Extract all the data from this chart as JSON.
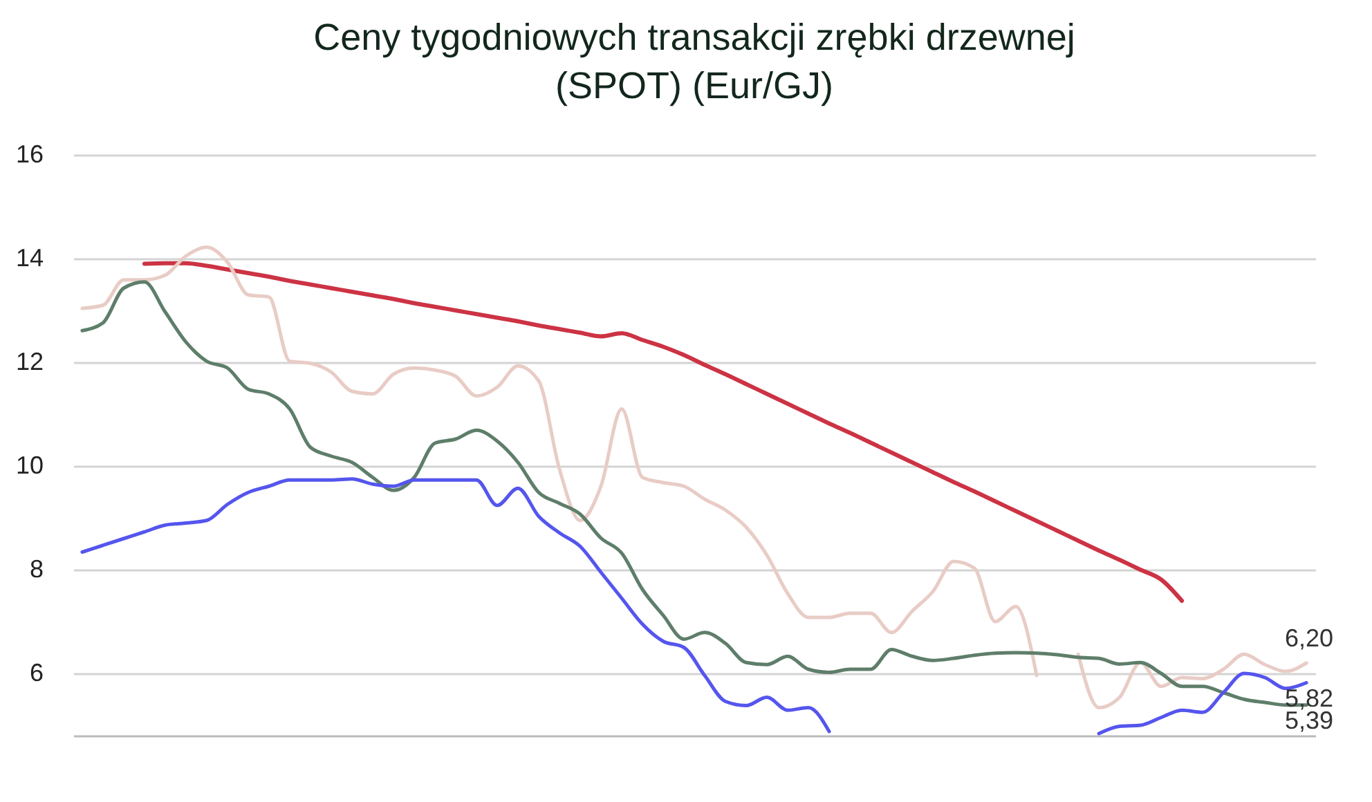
{
  "chart_data": {
    "type": "line",
    "title": "Ceny tygodniowych transakcji zrębki drzewnej\n(SPOT) (Eur/GJ)",
    "categories": [
      null,
      null,
      null,
      null,
      null,
      null,
      null,
      null,
      null,
      null,
      null,
      null,
      null,
      null,
      null,
      null,
      null,
      null,
      null,
      null,
      null,
      null,
      null,
      null,
      null,
      null,
      null,
      null,
      null,
      null,
      null,
      null,
      null,
      null,
      null,
      null,
      null,
      null,
      null,
      null,
      null,
      null,
      null,
      null,
      null,
      null,
      null,
      null,
      null,
      null,
      null,
      null,
      null,
      null,
      null,
      null,
      null,
      null,
      null,
      null
    ],
    "series": [
      {
        "color": "#cc3344",
        "values": [
          null,
          null,
          null,
          13.9,
          13.91,
          13.91,
          13.86,
          13.79,
          13.72,
          13.65,
          13.57,
          13.5,
          13.43,
          13.36,
          13.29,
          13.22,
          13.14,
          13.07,
          13.0,
          12.93,
          12.86,
          12.79,
          12.71,
          12.64,
          12.57,
          12.5,
          12.56,
          12.43,
          12.3,
          12.14,
          11.95,
          11.77,
          11.58,
          11.39,
          11.2,
          11.01,
          10.82,
          10.64,
          10.45,
          10.26,
          10.07,
          9.88,
          9.69,
          9.51,
          9.32,
          9.13,
          8.94,
          8.75,
          8.56,
          8.37,
          8.19,
          8.0,
          7.81,
          7.4,
          null,
          null,
          null,
          null,
          null,
          null
        ]
      },
      {
        "color": "#e8ccc5",
        "values": [
          13.04,
          13.1,
          13.59,
          13.59,
          13.68,
          14.05,
          14.22,
          13.93,
          13.3,
          13.26,
          12.02,
          11.98,
          11.81,
          11.44,
          11.39,
          11.77,
          11.89,
          11.85,
          11.73,
          11.35,
          11.52,
          11.93,
          11.64,
          9.94,
          8.95,
          9.61,
          11.1,
          9.78,
          9.68,
          9.61,
          9.36,
          9.15,
          8.82,
          8.28,
          7.54,
          7.08,
          7.08,
          7.16,
          7.16,
          6.79,
          7.2,
          7.58,
          8.16,
          8.03,
          7.0,
          7.29,
          5.96,
          null,
          6.37,
          5.34,
          5.54,
          6.21,
          5.75,
          5.92,
          5.9,
          6.08,
          6.37,
          6.17,
          6.04,
          6.2
        ],
        "value_labels": [
          null,
          null,
          null,
          null,
          null,
          null,
          null,
          null,
          null,
          null,
          null,
          null,
          null,
          null,
          null,
          null,
          null,
          null,
          null,
          null,
          null,
          null,
          null,
          null,
          null,
          null,
          null,
          null,
          null,
          null,
          null,
          null,
          null,
          null,
          null,
          null,
          null,
          null,
          null,
          null,
          null,
          null,
          null,
          null,
          null,
          null,
          null,
          null,
          null,
          null,
          null,
          null,
          null,
          null,
          null,
          null,
          null,
          null,
          null,
          "6,20"
        ]
      },
      {
        "color": "#5e7e6a",
        "values": [
          12.61,
          12.76,
          13.43,
          13.55,
          12.97,
          12.39,
          12.02,
          11.89,
          11.48,
          11.39,
          11.1,
          10.36,
          10.19,
          10.07,
          9.78,
          9.53,
          9.78,
          10.44,
          10.52,
          10.69,
          10.48,
          10.07,
          9.49,
          9.28,
          9.07,
          8.61,
          8.32,
          7.62,
          7.12,
          6.66,
          6.79,
          6.58,
          6.21,
          6.17,
          6.33,
          6.08,
          6.02,
          6.08,
          6.08,
          6.46,
          6.33,
          6.25,
          6.29,
          6.35,
          6.39,
          6.4,
          6.39,
          6.36,
          6.31,
          6.29,
          6.18,
          6.21,
          6.0,
          5.75,
          5.75,
          5.63,
          5.5,
          5.44,
          5.39,
          5.39
        ],
        "value_labels": [
          null,
          null,
          null,
          null,
          null,
          null,
          null,
          null,
          null,
          null,
          null,
          null,
          null,
          null,
          null,
          null,
          null,
          null,
          null,
          null,
          null,
          null,
          null,
          null,
          null,
          null,
          null,
          null,
          null,
          null,
          null,
          null,
          null,
          null,
          null,
          null,
          null,
          null,
          null,
          null,
          null,
          null,
          null,
          null,
          null,
          null,
          null,
          null,
          null,
          null,
          null,
          null,
          null,
          null,
          null,
          null,
          null,
          null,
          null,
          "5,39"
        ]
      },
      {
        "color": "#5555ee",
        "values": [
          8.34,
          8.47,
          8.6,
          8.73,
          8.86,
          8.9,
          8.95,
          9.26,
          9.49,
          9.61,
          9.73,
          9.73,
          9.73,
          9.75,
          9.65,
          9.61,
          9.73,
          9.73,
          9.73,
          9.73,
          9.24,
          9.57,
          9.03,
          8.71,
          8.45,
          7.95,
          7.45,
          6.95,
          6.62,
          6.5,
          5.96,
          5.46,
          5.38,
          5.54,
          5.29,
          5.34,
          4.88,
          null,
          null,
          null,
          null,
          null,
          null,
          null,
          null,
          null,
          null,
          null,
          null,
          4.84,
          4.98,
          5.0,
          5.15,
          5.29,
          5.25,
          5.63,
          6.0,
          5.92,
          5.71,
          5.82
        ],
        "value_labels": [
          null,
          null,
          null,
          null,
          null,
          null,
          null,
          null,
          null,
          null,
          null,
          null,
          null,
          null,
          null,
          null,
          null,
          null,
          null,
          null,
          null,
          null,
          null,
          null,
          null,
          null,
          null,
          null,
          null,
          null,
          null,
          null,
          null,
          null,
          null,
          null,
          null,
          null,
          null,
          null,
          null,
          null,
          null,
          null,
          null,
          null,
          null,
          null,
          null,
          null,
          null,
          null,
          null,
          null,
          null,
          null,
          null,
          null,
          null,
          "5,82"
        ]
      }
    ],
    "ylim": [
      4.8,
      16
    ],
    "yticks": [
      6,
      8,
      10,
      12,
      14,
      16
    ],
    "grid": "y",
    "tick_labels": "y"
  }
}
